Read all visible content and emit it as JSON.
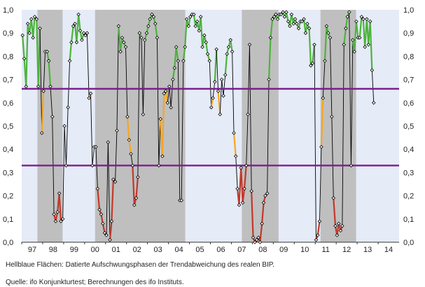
{
  "notes": {
    "footnote": "Hellblaue Flächen: Datierte Aufschwungsphasen der Trendabweichung des realen BIP.",
    "source": "Quelle: ifo Konjunkturtest; Berechnungen des ifo Instituts."
  },
  "chart_data": {
    "type": "line",
    "title": "",
    "xlabel": "",
    "ylabel": "",
    "xlim": [
      1997.0,
      2015.0
    ],
    "ylim": [
      0,
      1
    ],
    "y_ticks": [
      "0,0",
      "0,1",
      "0,2",
      "0,3",
      "0,4",
      "0,5",
      "0,6",
      "0,7",
      "0,8",
      "0,9",
      "1,0"
    ],
    "y_tick_values": [
      0,
      0.1,
      0.2,
      0.3,
      0.4,
      0.5,
      0.6,
      0.7,
      0.8,
      0.9,
      1.0
    ],
    "x_ticks": [
      "97",
      "98",
      "99",
      "00",
      "01",
      "02",
      "03",
      "04",
      "05",
      "06",
      "07",
      "08",
      "09",
      "10",
      "11",
      "12",
      "13",
      "14"
    ],
    "y_axis_both_sides": true,
    "thresholds": [
      0.33,
      0.66
    ],
    "recession_periods": [
      [
        1997.75,
        1998.95
      ],
      [
        2000.5,
        2004.8
      ],
      [
        2007.5,
        2009.25
      ],
      [
        2011.25,
        2012.95
      ]
    ],
    "colors": {
      "background": "#e5ebf7",
      "shading": "#bfbfbf",
      "threshold": "#7b1f8c",
      "line": "#000000",
      "high": "#4cb33c",
      "mid": "#f5a623",
      "low": "#c0392b"
    },
    "series": [
      {
        "values": [
          [
            1997.04,
            0.89
          ],
          [
            1997.12,
            0.79
          ],
          [
            1997.21,
            0.67
          ],
          [
            1997.29,
            0.94
          ],
          [
            1997.37,
            0.9
          ],
          [
            1997.46,
            0.96
          ],
          [
            1997.54,
            0.88
          ],
          [
            1997.62,
            0.97
          ],
          [
            1997.71,
            0.96
          ],
          [
            1997.79,
            0.67
          ],
          [
            1997.87,
            0.92
          ],
          [
            1997.96,
            0.47
          ],
          [
            1998.04,
            0.65
          ],
          [
            1998.12,
            0.82
          ],
          [
            1998.21,
            0.82
          ],
          [
            1998.29,
            0.78
          ],
          [
            1998.37,
            0.67
          ],
          [
            1998.46,
            0.54
          ],
          [
            1998.54,
            0.12
          ],
          [
            1998.62,
            0.09
          ],
          [
            1998.71,
            0.13
          ],
          [
            1998.79,
            0.21
          ],
          [
            1998.87,
            0.09
          ],
          [
            1998.96,
            0.1
          ],
          [
            1999.04,
            0.5
          ],
          [
            1999.12,
            0.33
          ],
          [
            1999.21,
            0.58
          ],
          [
            1999.29,
            0.78
          ],
          [
            1999.37,
            0.86
          ],
          [
            1999.46,
            0.93
          ],
          [
            1999.54,
            0.94
          ],
          [
            1999.62,
            0.86
          ],
          [
            1999.71,
            0.98
          ],
          [
            1999.79,
            0.91
          ],
          [
            1999.87,
            0.87
          ],
          [
            1999.96,
            0.9
          ],
          [
            2000.04,
            0.89
          ],
          [
            2000.12,
            0.9
          ],
          [
            2000.21,
            0.62
          ],
          [
            2000.29,
            0.64
          ],
          [
            2000.37,
            0.33
          ],
          [
            2000.46,
            0.41
          ],
          [
            2000.54,
            0.41
          ],
          [
            2000.62,
            0.23
          ],
          [
            2000.71,
            0.14
          ],
          [
            2000.79,
            0.12
          ],
          [
            2000.87,
            0.08
          ],
          [
            2000.96,
            0.04
          ],
          [
            2001.04,
            0.03
          ],
          [
            2001.12,
            0.43
          ],
          [
            2001.21,
            0.01
          ],
          [
            2001.29,
            0.09
          ],
          [
            2001.37,
            0.27
          ],
          [
            2001.46,
            0.26
          ],
          [
            2001.54,
            0.48
          ],
          [
            2001.62,
            0.93
          ],
          [
            2001.71,
            0.82
          ],
          [
            2001.79,
            0.88
          ],
          [
            2001.87,
            0.86
          ],
          [
            2001.96,
            0.84
          ],
          [
            2002.04,
            0.54
          ],
          [
            2002.12,
            0.44
          ],
          [
            2002.21,
            0.38
          ],
          [
            2002.29,
            0.33
          ],
          [
            2002.37,
            0.16
          ],
          [
            2002.46,
            0.19
          ],
          [
            2002.54,
            0.28
          ],
          [
            2002.62,
            0.9
          ],
          [
            2002.71,
            0.88
          ],
          [
            2002.79,
            0.55
          ],
          [
            2002.87,
            0.87
          ],
          [
            2002.96,
            0.9
          ],
          [
            2003.04,
            0.93
          ],
          [
            2003.12,
            0.96
          ],
          [
            2003.21,
            0.98
          ],
          [
            2003.29,
            0.97
          ],
          [
            2003.37,
            0.94
          ],
          [
            2003.46,
            0.88
          ],
          [
            2003.54,
            0.33
          ],
          [
            2003.62,
            0.53
          ],
          [
            2003.71,
            0.37
          ],
          [
            2003.79,
            0.64
          ],
          [
            2003.87,
            0.65
          ],
          [
            2003.96,
            0.6
          ],
          [
            2004.04,
            0.67
          ],
          [
            2004.12,
            0.58
          ],
          [
            2004.21,
            0.7
          ],
          [
            2004.29,
            0.75
          ],
          [
            2004.37,
            0.84
          ],
          [
            2004.46,
            0.78
          ],
          [
            2004.54,
            0.18
          ],
          [
            2004.62,
            0.18
          ],
          [
            2004.71,
            0.78
          ],
          [
            2004.79,
            0.84
          ],
          [
            2004.87,
            0.96
          ],
          [
            2004.96,
            0.93
          ],
          [
            2005.04,
            0.97
          ],
          [
            2005.12,
            0.98
          ],
          [
            2005.21,
            0.98
          ],
          [
            2005.29,
            0.93
          ],
          [
            2005.37,
            0.95
          ],
          [
            2005.46,
            0.91
          ],
          [
            2005.54,
            0.97
          ],
          [
            2005.62,
            0.84
          ],
          [
            2005.71,
            0.89
          ],
          [
            2005.79,
            0.86
          ],
          [
            2005.87,
            0.81
          ],
          [
            2005.96,
            0.78
          ],
          [
            2006.04,
            0.58
          ],
          [
            2006.12,
            0.62
          ],
          [
            2006.21,
            0.69
          ],
          [
            2006.29,
            0.83
          ],
          [
            2006.37,
            0.65
          ],
          [
            2006.46,
            0.55
          ],
          [
            2006.54,
            0.7
          ],
          [
            2006.62,
            0.63
          ],
          [
            2006.71,
            0.72
          ],
          [
            2006.79,
            0.81
          ],
          [
            2006.87,
            0.84
          ],
          [
            2006.96,
            0.87
          ],
          [
            2007.04,
            0.82
          ],
          [
            2007.12,
            0.47
          ],
          [
            2007.21,
            0.37
          ],
          [
            2007.29,
            0.23
          ],
          [
            2007.37,
            0.16
          ],
          [
            2007.46,
            0.32
          ],
          [
            2007.54,
            0.17
          ],
          [
            2007.62,
            0.23
          ],
          [
            2007.71,
            0.33
          ],
          [
            2007.79,
            0.55
          ],
          [
            2007.87,
            0.85
          ],
          [
            2007.96,
            0.22
          ],
          [
            2008.04,
            0.02
          ],
          [
            2008.12,
            0.0
          ],
          [
            2008.21,
            0.01
          ],
          [
            2008.29,
            0.02
          ],
          [
            2008.37,
            0.0
          ],
          [
            2008.46,
            0.08
          ],
          [
            2008.54,
            0.17
          ],
          [
            2008.62,
            0.2
          ],
          [
            2008.71,
            0.21
          ],
          [
            2008.79,
            0.7
          ],
          [
            2008.87,
            0.88
          ],
          [
            2008.96,
            0.96
          ],
          [
            2009.04,
            0.97
          ],
          [
            2009.12,
            0.98
          ],
          [
            2009.21,
            0.96
          ],
          [
            2009.29,
            0.98
          ],
          [
            2009.37,
            0.98
          ],
          [
            2009.46,
            0.99
          ],
          [
            2009.54,
            0.97
          ],
          [
            2009.62,
            0.99
          ],
          [
            2009.71,
            0.95
          ],
          [
            2009.79,
            0.93
          ],
          [
            2009.87,
            0.98
          ],
          [
            2009.96,
            0.94
          ],
          [
            2010.04,
            0.96
          ],
          [
            2010.12,
            0.94
          ],
          [
            2010.21,
            0.92
          ],
          [
            2010.29,
            0.95
          ],
          [
            2010.37,
            0.95
          ],
          [
            2010.46,
            0.96
          ],
          [
            2010.54,
            0.9
          ],
          [
            2010.62,
            0.94
          ],
          [
            2010.71,
            0.92
          ],
          [
            2010.79,
            0.76
          ],
          [
            2010.87,
            0.77
          ],
          [
            2010.96,
            0.85
          ],
          [
            2011.04,
            0.01
          ],
          [
            2011.12,
            0.03
          ],
          [
            2011.21,
            0.09
          ],
          [
            2011.29,
            0.41
          ],
          [
            2011.37,
            0.62
          ],
          [
            2011.46,
            0.78
          ],
          [
            2011.54,
            0.93
          ],
          [
            2011.62,
            0.9
          ],
          [
            2011.71,
            0.88
          ],
          [
            2011.79,
            0.54
          ],
          [
            2011.87,
            0.19
          ],
          [
            2011.96,
            0.07
          ],
          [
            2012.04,
            0.03
          ],
          [
            2012.12,
            0.08
          ],
          [
            2012.21,
            0.05
          ],
          [
            2012.29,
            0.07
          ],
          [
            2012.37,
            0.85
          ],
          [
            2012.46,
            0.92
          ],
          [
            2012.54,
            0.97
          ],
          [
            2012.62,
            0.99
          ],
          [
            2012.71,
            0.33
          ],
          [
            2012.79,
            0.87
          ],
          [
            2012.87,
            0.82
          ],
          [
            2012.96,
            0.95
          ],
          [
            2013.04,
            0.88
          ],
          [
            2013.12,
            0.88
          ],
          [
            2013.21,
            0.97
          ],
          [
            2013.29,
            0.96
          ],
          [
            2013.37,
            0.84
          ],
          [
            2013.46,
            0.96
          ],
          [
            2013.54,
            0.85
          ],
          [
            2013.62,
            0.95
          ],
          [
            2013.71,
            0.74
          ],
          [
            2013.79,
            0.6
          ]
        ]
      }
    ]
  }
}
